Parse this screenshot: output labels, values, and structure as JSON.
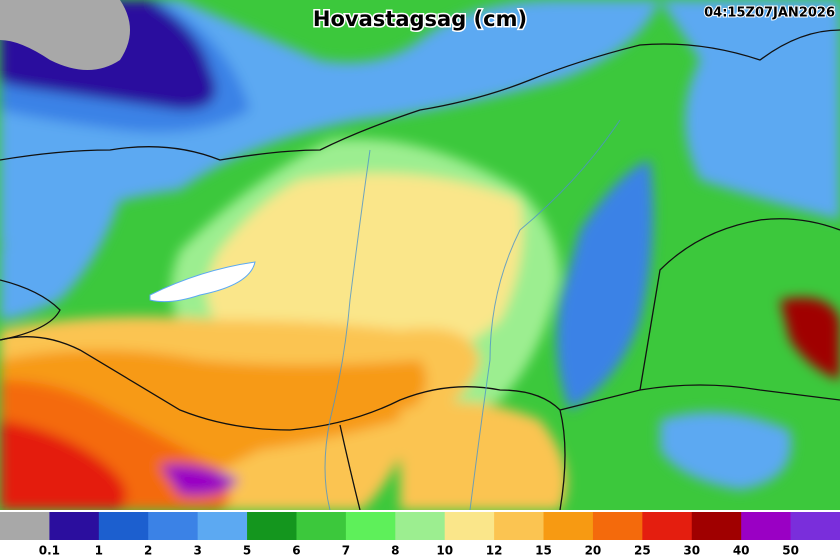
{
  "header": {
    "title": "Hovastagsag (cm)",
    "timestamp": "04:15Z07JAN2026"
  },
  "legend": {
    "colors": [
      "#a8a8a8",
      "#2b0e9e",
      "#1c5fcf",
      "#3b82e6",
      "#5ca9f2",
      "#14961e",
      "#3cc83c",
      "#5ef05a",
      "#9cee90",
      "#fae68a",
      "#fbc451",
      "#f79a12",
      "#f46a0c",
      "#e41e0f",
      "#a00000",
      "#9a00c4",
      "#7a2edb"
    ],
    "ticks": [
      0.1,
      1,
      2,
      3,
      5,
      6,
      7,
      8,
      10,
      12,
      15,
      20,
      25,
      30,
      40,
      50
    ]
  }
}
